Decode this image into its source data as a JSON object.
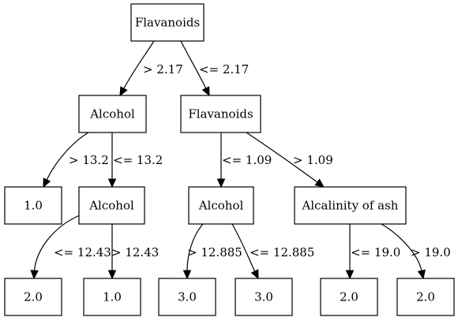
{
  "tree": {
    "nodes": [
      {
        "id": "n0",
        "label": "Flavanoids"
      },
      {
        "id": "n1",
        "label": "Alcohol"
      },
      {
        "id": "n2",
        "label": "Flavanoids"
      },
      {
        "id": "n3",
        "label": "1.0"
      },
      {
        "id": "n4",
        "label": "Alcohol"
      },
      {
        "id": "n5",
        "label": "Alcohol"
      },
      {
        "id": "n6",
        "label": "Alcalinity of ash"
      },
      {
        "id": "n7",
        "label": "2.0"
      },
      {
        "id": "n8",
        "label": "1.0"
      },
      {
        "id": "n9",
        "label": "3.0"
      },
      {
        "id": "n10",
        "label": "3.0"
      },
      {
        "id": "n11",
        "label": "2.0"
      },
      {
        "id": "n12",
        "label": "2.0"
      }
    ],
    "edges": [
      {
        "from": "n0",
        "to": "n1",
        "label": "> 2.17"
      },
      {
        "from": "n0",
        "to": "n2",
        "label": "<= 2.17"
      },
      {
        "from": "n1",
        "to": "n3",
        "label": "> 13.2"
      },
      {
        "from": "n1",
        "to": "n4",
        "label": "<= 13.2"
      },
      {
        "from": "n2",
        "to": "n5",
        "label": "<= 1.09"
      },
      {
        "from": "n2",
        "to": "n6",
        "label": "> 1.09"
      },
      {
        "from": "n4",
        "to": "n7",
        "label": "<= 12.43"
      },
      {
        "from": "n4",
        "to": "n8",
        "label": "> 12.43"
      },
      {
        "from": "n5",
        "to": "n9",
        "label": "> 12.885"
      },
      {
        "from": "n5",
        "to": "n10",
        "label": "<= 12.885"
      },
      {
        "from": "n6",
        "to": "n11",
        "label": "<= 19.0"
      },
      {
        "from": "n6",
        "to": "n12",
        "label": "> 19.0"
      }
    ]
  }
}
